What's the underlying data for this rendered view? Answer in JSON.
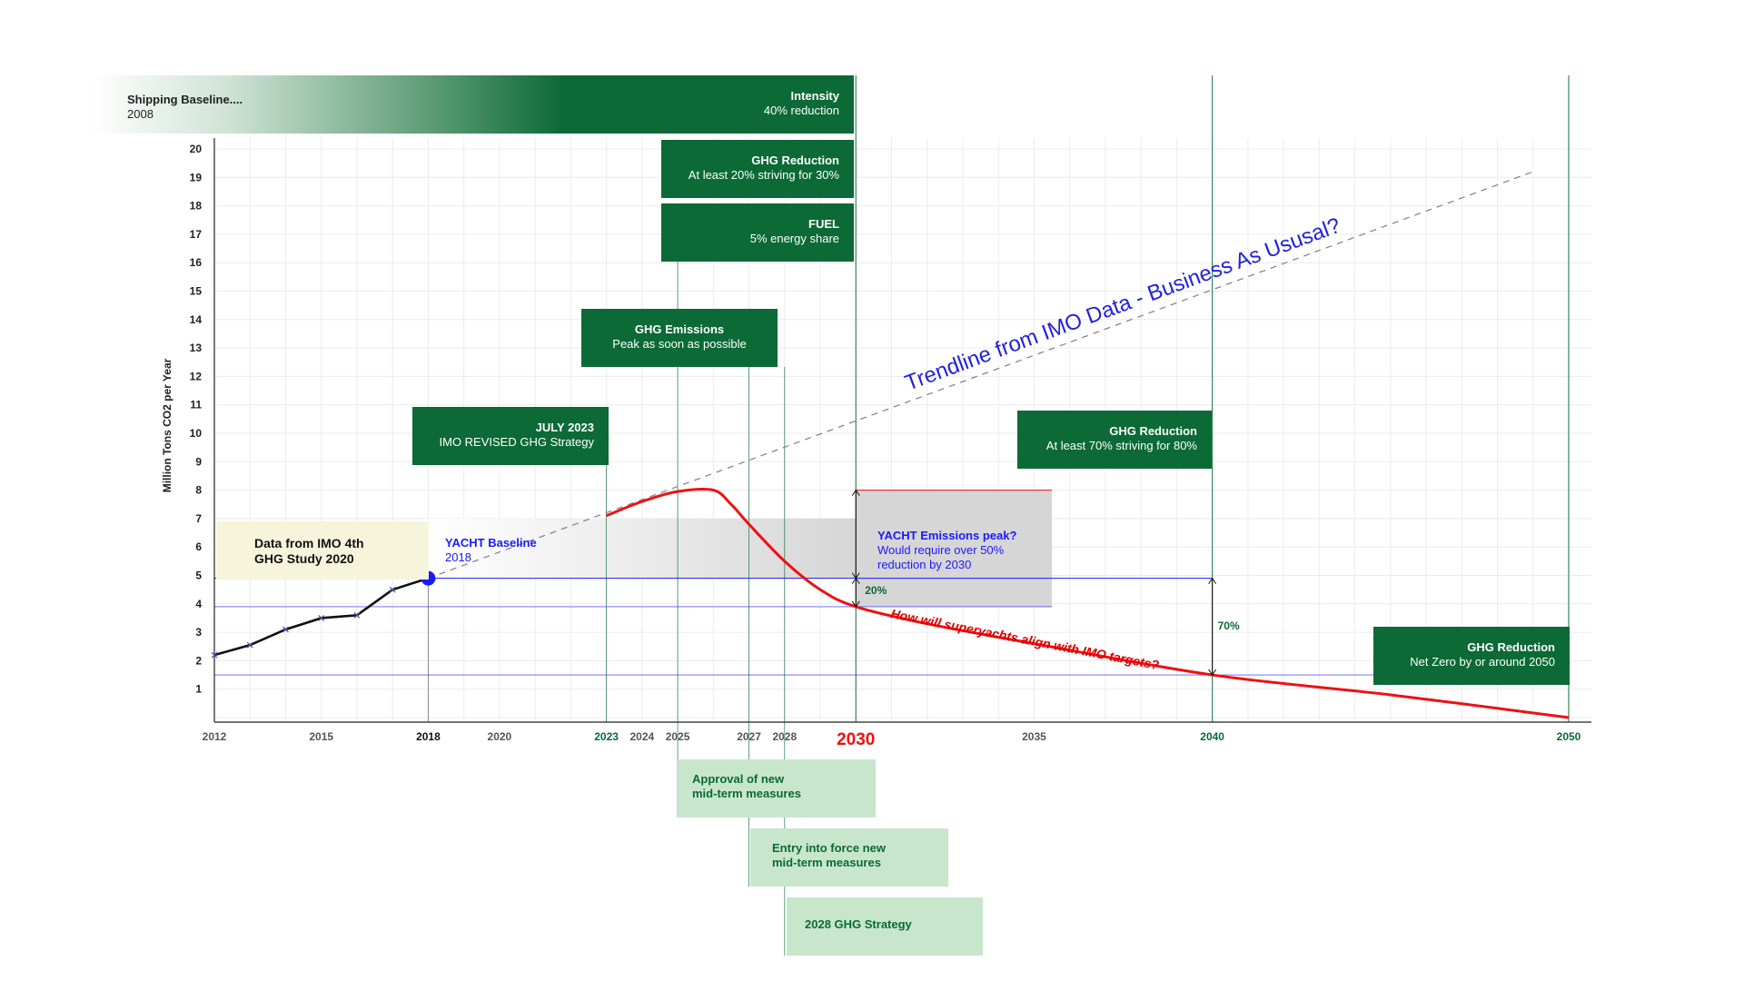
{
  "ylabel": "Million Tons CO2 per Year",
  "colors": {
    "dark_green": "#0b6a35",
    "light_green": "#c8e6cc",
    "cream": "#f7f4dc",
    "baseline_blue": "#1a1aff",
    "target_red": "#ee1111",
    "peak_gray": "#d6d6d6"
  },
  "boxes": {
    "shipping_baseline": {
      "title": "Shipping Baseline....",
      "sub": "2008"
    },
    "intensity": {
      "title": "Intensity",
      "sub": "40% reduction"
    },
    "ghg_reduction_2030": {
      "title": "GHG Reduction",
      "sub": "At least 20% striving for 30%"
    },
    "fuel": {
      "title": "FUEL",
      "sub": "5% energy share"
    },
    "ghg_emissions": {
      "title": "GHG Emissions",
      "sub": "Peak as soon as possible"
    },
    "july_2023": {
      "title": "JULY 2023",
      "sub": "IMO REVISED GHG Strategy"
    },
    "ghg_reduction_2040": {
      "title": "GHG Reduction",
      "sub": "At least 70% striving for 80%"
    },
    "ghg_reduction_2050": {
      "title": "GHG Reduction",
      "sub": "Net Zero by or around 2050"
    },
    "imo_data": {
      "line1": "Data from IMO 4th",
      "line2": "GHG Study 2020"
    },
    "yacht_baseline": {
      "title": "YACHT Baseline",
      "sub": "2018"
    },
    "yacht_peak": {
      "title": "YACHT Emissions peak?",
      "sub1": "Would require over 50%",
      "sub2": "reduction by 2030"
    },
    "approval": {
      "line1": "Approval of new",
      "line2": "mid-term measures"
    },
    "entry_force": {
      "line1": "Entry into force new",
      "line2": "mid-term measures"
    },
    "strategy_2028": {
      "line1": "2028 GHG Strategy"
    }
  },
  "chart_data": {
    "type": "line",
    "x_axis": {
      "range": [
        2012,
        2050
      ],
      "tick_labels": [
        "2012",
        "2015",
        "2018",
        "2020",
        "2023",
        "2024",
        "2025",
        "2027",
        "2028",
        "2030",
        "2035",
        "2040",
        "2050"
      ],
      "highlight": {
        "2018": "bold-black",
        "2023": "bold-green",
        "2030": "large-red",
        "2040": "bold-green",
        "2050": "bold-green"
      }
    },
    "y_axis": {
      "range": [
        0,
        20
      ],
      "tick_labels": [
        "1",
        "2",
        "3",
        "4",
        "5",
        "6",
        "7",
        "8",
        "9",
        "10",
        "11",
        "12",
        "13",
        "14",
        "15",
        "16",
        "17",
        "18",
        "19",
        "20"
      ]
    },
    "grid": true,
    "series": [
      {
        "style": "black-with-markers",
        "x": [
          2012,
          2013,
          2014,
          2015,
          2016,
          2017,
          2018
        ],
        "y": [
          2.2,
          2.55,
          3.1,
          3.5,
          3.6,
          4.5,
          4.9
        ]
      },
      {
        "name": "Trendline from IMO Data - Business As Ususal?",
        "style": "gray-dashed",
        "x": [
          2018,
          2049
        ],
        "y": [
          4.9,
          19.2
        ]
      },
      {
        "style": "red",
        "x": [
          2023,
          2024,
          2025,
          2026,
          2026.5,
          2027,
          2028,
          2029,
          2030,
          2032,
          2035,
          2040,
          2045,
          2050
        ],
        "y": [
          7.1,
          7.6,
          7.95,
          8.0,
          7.5,
          6.8,
          5.5,
          4.5,
          3.9,
          3.3,
          2.6,
          1.5,
          0.8,
          0.0
        ]
      }
    ],
    "reference_lines": {
      "yacht_baseline_y": 4.9,
      "reduction_20_y": 3.9,
      "reduction_70_y": 1.5,
      "peak_y": 8.0,
      "imo_data_band_y": 7.0
    },
    "vertical_lines_x": [
      2018,
      2023,
      2025,
      2027,
      2028,
      2030,
      2040,
      2050
    ],
    "baseline_point": {
      "x": 2018,
      "y": 4.9
    },
    "annotations": {
      "reduction_20": "20%",
      "reduction_70": "70%",
      "red_curve_label": "How will superyachts align with IMO targets?"
    }
  }
}
